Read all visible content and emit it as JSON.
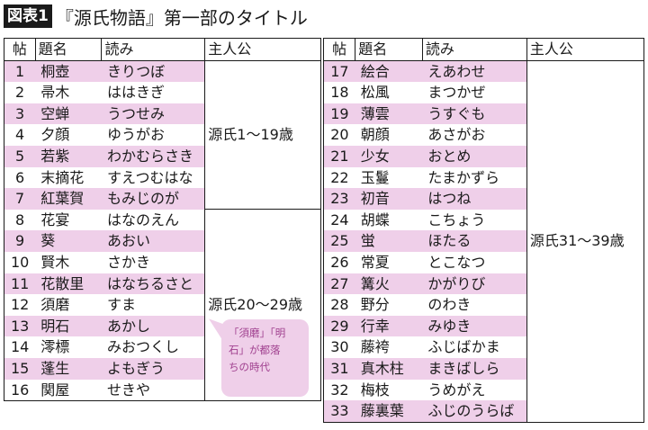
{
  "title": {
    "badge": "図表1",
    "text": "『源氏物語』第一部のタイトル"
  },
  "headers": {
    "num": "帖",
    "name": "題名",
    "yomi": "読み",
    "hero": "主人公"
  },
  "left_table": {
    "rows": [
      {
        "num": "1",
        "name": "桐壺",
        "yomi": "きりつぼ"
      },
      {
        "num": "2",
        "name": "帚木",
        "yomi": "ははきぎ"
      },
      {
        "num": "3",
        "name": "空蝉",
        "yomi": "うつせみ"
      },
      {
        "num": "4",
        "name": "夕顔",
        "yomi": "ゆうがお"
      },
      {
        "num": "5",
        "name": "若紫",
        "yomi": "わかむらさき"
      },
      {
        "num": "6",
        "name": "末摘花",
        "yomi": "すえつむはな"
      },
      {
        "num": "7",
        "name": "紅葉賀",
        "yomi": "もみじのが"
      },
      {
        "num": "8",
        "name": "花宴",
        "yomi": "はなのえん"
      },
      {
        "num": "9",
        "name": "葵",
        "yomi": "あおい"
      },
      {
        "num": "10",
        "name": "賢木",
        "yomi": "さかき"
      },
      {
        "num": "11",
        "name": "花散里",
        "yomi": "はなちるさと"
      },
      {
        "num": "12",
        "name": "須磨",
        "yomi": "すま"
      },
      {
        "num": "13",
        "name": "明石",
        "yomi": "あかし"
      },
      {
        "num": "14",
        "name": "澪標",
        "yomi": "みおつくし"
      },
      {
        "num": "15",
        "name": "蓬生",
        "yomi": "よもぎう"
      },
      {
        "num": "16",
        "name": "関屋",
        "yomi": "せきや"
      }
    ],
    "hero_groups": [
      {
        "label": "源氏1〜19歳",
        "rows": 7
      },
      {
        "label": "源氏20〜29歳",
        "rows": 9
      }
    ]
  },
  "right_table": {
    "rows": [
      {
        "num": "17",
        "name": "絵合",
        "yomi": "えあわせ"
      },
      {
        "num": "18",
        "name": "松風",
        "yomi": "まつかぜ"
      },
      {
        "num": "19",
        "name": "薄雲",
        "yomi": "うすぐも"
      },
      {
        "num": "20",
        "name": "朝顔",
        "yomi": "あさがお"
      },
      {
        "num": "21",
        "name": "少女",
        "yomi": "おとめ"
      },
      {
        "num": "22",
        "name": "玉鬘",
        "yomi": "たまかずら"
      },
      {
        "num": "23",
        "name": "初音",
        "yomi": "はつね"
      },
      {
        "num": "24",
        "name": "胡蝶",
        "yomi": "こちょう"
      },
      {
        "num": "25",
        "name": "蛍",
        "yomi": "ほたる"
      },
      {
        "num": "26",
        "name": "常夏",
        "yomi": "とこなつ"
      },
      {
        "num": "27",
        "name": "篝火",
        "yomi": "かがりび"
      },
      {
        "num": "28",
        "name": "野分",
        "yomi": "のわき"
      },
      {
        "num": "29",
        "name": "行幸",
        "yomi": "みゆき"
      },
      {
        "num": "30",
        "name": "藤袴",
        "yomi": "ふじばかま"
      },
      {
        "num": "31",
        "name": "真木柱",
        "yomi": "まきばしら"
      },
      {
        "num": "32",
        "name": "梅枝",
        "yomi": "うめがえ"
      },
      {
        "num": "33",
        "name": "藤裏葉",
        "yomi": "ふじのうらば"
      }
    ],
    "hero_groups": [
      {
        "label": "源氏31〜39歳",
        "rows": 17
      }
    ]
  },
  "callout": {
    "text_lines": [
      "「須磨」「明",
      "石」が都落",
      "ちの時代"
    ]
  },
  "colors": {
    "row_highlight": "#efcfe9",
    "callout_text": "#a0408f",
    "border": "#1a1a1a"
  }
}
